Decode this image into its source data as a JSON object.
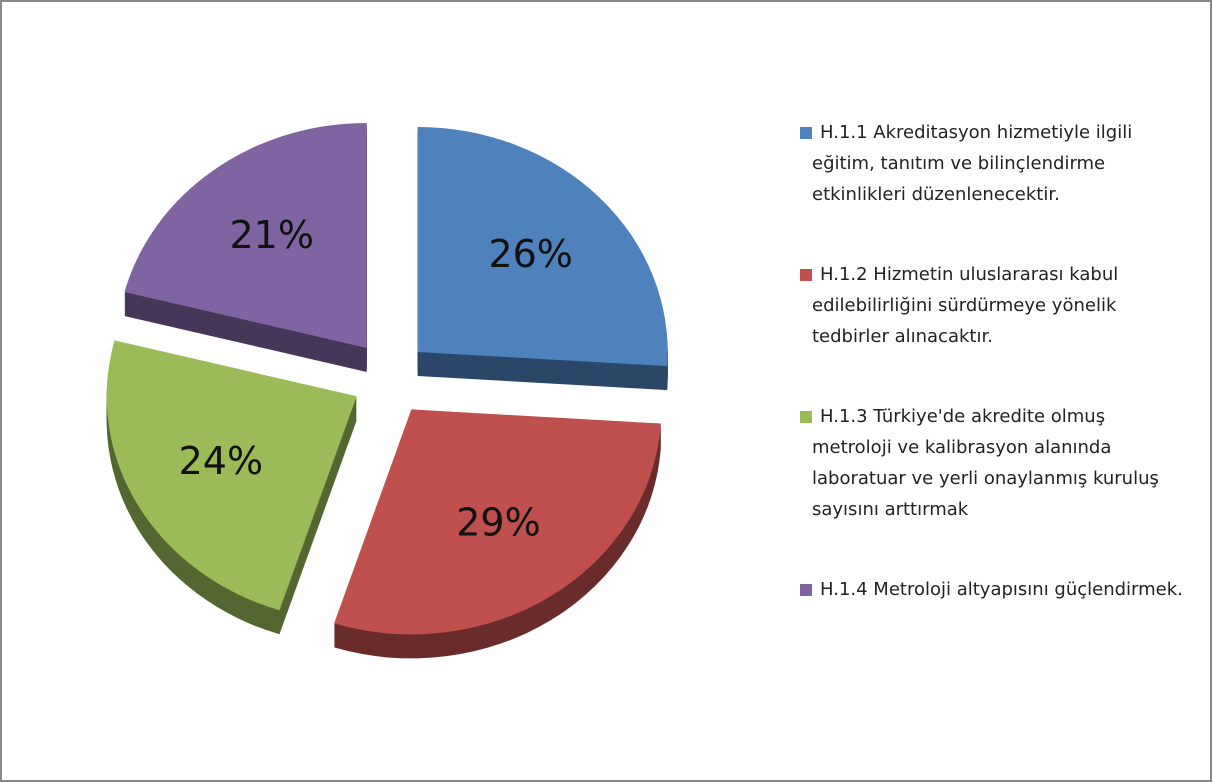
{
  "chart_data": {
    "type": "pie",
    "categories": [
      "H.1.1 Akreditasyon hizmetiyle ilgili eğitim, tanıtım ve bilinçlendirme etkinlikleri düzenlenecektir.",
      "H.1.2 Hizmetin uluslararası kabul edilebilirliğini sürdürmeye yönelik tedbirler alınacaktır.",
      "H.1.3 Türkiye'de akredite olmuş metroloji ve kalibrasyon alanında laboratuar ve yerli onaylanmış kuruluş sayısını arttırmak",
      "H.1.4 Metroloji altyapısını güçlendirmek."
    ],
    "values": [
      26,
      29,
      24,
      21
    ],
    "value_labels": [
      "26%",
      "29%",
      "24%",
      "21%"
    ],
    "colors": [
      "#4f81bd",
      "#c0504d",
      "#9bbb59",
      "#8064a2"
    ],
    "legend": "right"
  }
}
